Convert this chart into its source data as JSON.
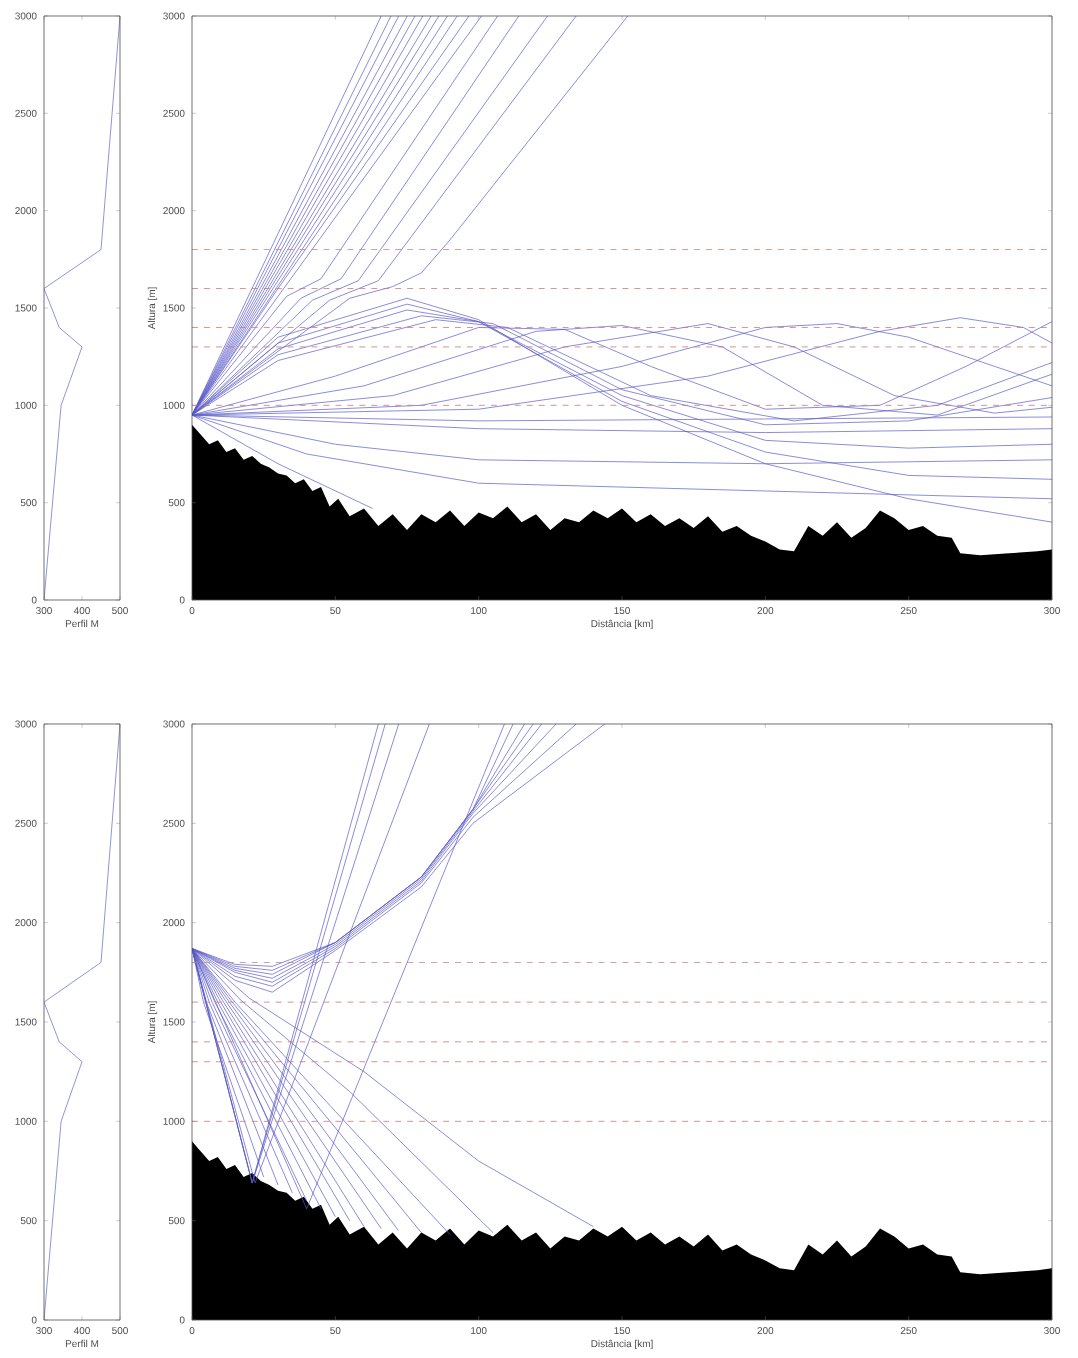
{
  "chart_data": [
    {
      "type": "line",
      "xlabel": "Perfil M",
      "xlim": [
        300,
        500
      ],
      "ylim": [
        0,
        3000
      ],
      "xticks": [
        300,
        400,
        500
      ],
      "yticks": [
        0,
        500,
        1000,
        1500,
        2000,
        2500,
        3000
      ],
      "series": [
        {
          "color": "#6464c8",
          "x": [
            300,
            345,
            400,
            340,
            300,
            450,
            500
          ],
          "values": [
            0,
            1000,
            1300,
            1400,
            1600,
            1800,
            3000
          ]
        }
      ]
    },
    {
      "type": "line",
      "xlabel": "Distância [km]",
      "ylabel": "Altura [m]",
      "xlim": [
        0,
        300
      ],
      "ylim": [
        0,
        3000
      ],
      "xticks": [
        0,
        50,
        100,
        150,
        200,
        250,
        300
      ],
      "yticks": [
        0,
        500,
        1000,
        1500,
        2000,
        2500,
        3000
      ],
      "ref_lines": [
        {
          "axis": "y",
          "value": 1000,
          "color": "#cc7777",
          "line_style": "dashed"
        },
        {
          "axis": "y",
          "value": 1300,
          "color": "#cc7777",
          "line_style": "dashed"
        },
        {
          "axis": "y",
          "value": 1400,
          "color": "#cc7777",
          "line_style": "dashed"
        },
        {
          "axis": "y",
          "value": 1600,
          "color": "#cc7777",
          "line_style": "dashed"
        },
        {
          "axis": "y",
          "value": 1800,
          "color": "#cc7777",
          "line_style": "dashed"
        }
      ],
      "series": [
        {
          "type": "area",
          "color": "#000000",
          "x": [
            0,
            3,
            6,
            9,
            12,
            15,
            18,
            21,
            24,
            27,
            30,
            33,
            36,
            39,
            42,
            45,
            48,
            51,
            55,
            60,
            65,
            70,
            75,
            80,
            85,
            90,
            95,
            100,
            105,
            110,
            115,
            120,
            125,
            130,
            135,
            140,
            145,
            150,
            155,
            160,
            165,
            170,
            175,
            180,
            185,
            190,
            195,
            200,
            205,
            210,
            215,
            220,
            225,
            230,
            235,
            240,
            245,
            250,
            255,
            260,
            265,
            268,
            275,
            285,
            295,
            300
          ],
          "values": [
            900,
            850,
            800,
            820,
            760,
            780,
            720,
            740,
            700,
            680,
            650,
            640,
            600,
            620,
            560,
            580,
            480,
            520,
            430,
            470,
            380,
            440,
            360,
            440,
            400,
            460,
            380,
            450,
            420,
            480,
            400,
            440,
            360,
            420,
            400,
            460,
            420,
            470,
            400,
            440,
            380,
            420,
            370,
            430,
            350,
            380,
            330,
            300,
            260,
            250,
            380,
            330,
            400,
            320,
            370,
            460,
            420,
            360,
            380,
            330,
            320,
            240,
            230,
            240,
            250,
            260
          ]
        },
        {
          "color": "#5a5ac8",
          "x": [
            0,
            66
          ],
          "values": [
            950,
            3000
          ]
        },
        {
          "color": "#5a5ac8",
          "x": [
            0,
            69.4
          ],
          "values": [
            950,
            3000
          ]
        },
        {
          "color": "#5a5ac8",
          "x": [
            0,
            72.1
          ],
          "values": [
            950,
            3000
          ]
        },
        {
          "color": "#5a5ac8",
          "x": [
            0,
            75.1
          ],
          "values": [
            950,
            3000
          ]
        },
        {
          "color": "#5a5ac8",
          "x": [
            0,
            77.8
          ],
          "values": [
            950,
            3000
          ]
        },
        {
          "color": "#5a5ac8",
          "x": [
            0,
            80.5
          ],
          "values": [
            950,
            3000
          ]
        },
        {
          "color": "#5a5ac8",
          "x": [
            0,
            83.4
          ],
          "values": [
            950,
            3000
          ]
        },
        {
          "color": "#5a5ac8",
          "x": [
            0,
            86.1
          ],
          "values": [
            950,
            3000
          ]
        },
        {
          "color": "#5a5ac8",
          "x": [
            0,
            89.1
          ],
          "values": [
            950,
            3000
          ]
        },
        {
          "color": "#5a5ac8",
          "x": [
            0,
            92.5
          ],
          "values": [
            950,
            3000
          ]
        },
        {
          "color": "#5a5ac8",
          "x": [
            0,
            30,
            96.6
          ],
          "values": [
            950,
            1600,
            3000
          ]
        },
        {
          "color": "#5a5ac8",
          "x": [
            0,
            31,
            101
          ],
          "values": [
            950,
            1580,
            3000
          ]
        },
        {
          "color": "#5a5ac8",
          "x": [
            0,
            33,
            45,
            106.6
          ],
          "values": [
            950,
            1560,
            1650,
            3000
          ]
        },
        {
          "color": "#5a5ac8",
          "x": [
            0,
            38,
            52,
            114
          ],
          "values": [
            950,
            1550,
            1650,
            3000
          ]
        },
        {
          "color": "#5a5ac8",
          "x": [
            0,
            42,
            58,
            124
          ],
          "values": [
            950,
            1540,
            1640,
            3000
          ]
        },
        {
          "color": "#5a5ac8",
          "x": [
            0,
            48,
            65,
            134
          ],
          "values": [
            950,
            1540,
            1640,
            3000
          ]
        },
        {
          "color": "#5a5ac8",
          "x": [
            0,
            55,
            70,
            80,
            90,
            152
          ],
          "values": [
            950,
            1550,
            1610,
            1680,
            1850,
            3000
          ]
        },
        {
          "color": "#5a5ac8",
          "x": [
            0,
            30,
            75,
            100,
            150,
            200,
            250,
            300
          ],
          "values": [
            950,
            1350,
            1550,
            1440,
            1000,
            700,
            520,
            400
          ]
        },
        {
          "color": "#5a5ac8",
          "x": [
            0,
            30,
            75,
            100,
            150,
            200,
            250,
            300
          ],
          "values": [
            950,
            1320,
            1520,
            1430,
            1020,
            760,
            640,
            620
          ]
        },
        {
          "color": "#5a5ac8",
          "x": [
            0,
            30,
            75,
            100,
            150,
            200,
            250,
            300
          ],
          "values": [
            950,
            1290,
            1490,
            1430,
            1050,
            820,
            780,
            800
          ]
        },
        {
          "color": "#5a5ac8",
          "x": [
            0,
            30,
            80,
            105,
            150,
            200,
            250,
            300
          ],
          "values": [
            950,
            1260,
            1460,
            1420,
            1080,
            900,
            920,
            1040
          ]
        },
        {
          "color": "#5a5ac8",
          "x": [
            0,
            30,
            85,
            110,
            160,
            210,
            260,
            300
          ],
          "values": [
            950,
            1230,
            1440,
            1400,
            1050,
            920,
            1000,
            1220
          ]
        },
        {
          "color": "#5a5ac8",
          "x": [
            0,
            50,
            100,
            130,
            160,
            200,
            240,
            270,
            300
          ],
          "values": [
            950,
            1150,
            1400,
            1390,
            1200,
            980,
            1000,
            1200,
            1430
          ]
        },
        {
          "color": "#5a5ac8",
          "x": [
            0,
            60,
            120,
            150,
            185,
            220,
            260,
            300
          ],
          "values": [
            950,
            1100,
            1380,
            1410,
            1300,
            1000,
            950,
            1160
          ]
        },
        {
          "color": "#5a5ac8",
          "x": [
            0,
            70,
            130,
            180,
            210,
            245,
            280,
            300
          ],
          "values": [
            950,
            1050,
            1300,
            1420,
            1300,
            1050,
            960,
            990
          ]
        },
        {
          "color": "#5a5ac8",
          "x": [
            0,
            80,
            150,
            200,
            225,
            250,
            300
          ],
          "values": [
            950,
            1000,
            1200,
            1400,
            1420,
            1350,
            1100
          ]
        },
        {
          "color": "#5a5ac8",
          "x": [
            0,
            100,
            180,
            240,
            268,
            290,
            300
          ],
          "values": [
            950,
            980,
            1150,
            1380,
            1450,
            1400,
            1320
          ]
        },
        {
          "color": "#5a5ac8",
          "x": [
            0,
            100,
            200,
            300
          ],
          "values": [
            950,
            920,
            930,
            940
          ]
        },
        {
          "color": "#5a5ac8",
          "x": [
            0,
            100,
            200,
            300
          ],
          "values": [
            950,
            880,
            860,
            880
          ]
        },
        {
          "color": "#5a5ac8",
          "x": [
            0,
            50,
            100,
            200,
            300
          ],
          "values": [
            950,
            800,
            720,
            700,
            720
          ]
        },
        {
          "color": "#5a5ac8",
          "x": [
            0,
            40,
            100,
            200,
            300
          ],
          "values": [
            950,
            750,
            600,
            560,
            520
          ]
        },
        {
          "color": "#5a5ac8",
          "x": [
            0,
            30,
            63
          ],
          "values": [
            950,
            700,
            470
          ]
        }
      ]
    },
    {
      "type": "line",
      "xlabel": "Perfil M",
      "xlim": [
        300,
        500
      ],
      "ylim": [
        0,
        3000
      ],
      "xticks": [
        300,
        400,
        500
      ],
      "yticks": [
        0,
        500,
        1000,
        1500,
        2000,
        2500,
        3000
      ],
      "series": [
        {
          "color": "#6464c8",
          "x": [
            300,
            345,
            400,
            340,
            300,
            450,
            500
          ],
          "values": [
            0,
            1000,
            1300,
            1400,
            1600,
            1800,
            3000
          ]
        }
      ]
    },
    {
      "type": "line",
      "xlabel": "Distância [km]",
      "ylabel": "Altura [m]",
      "xlim": [
        0,
        300
      ],
      "ylim": [
        0,
        3000
      ],
      "xticks": [
        0,
        50,
        100,
        150,
        200,
        250,
        300
      ],
      "yticks": [
        0,
        500,
        1000,
        1500,
        2000,
        2500,
        3000
      ],
      "ref_lines": [
        {
          "axis": "y",
          "value": 1000,
          "color": "#cc7777",
          "line_style": "dashed"
        },
        {
          "axis": "y",
          "value": 1300,
          "color": "#cc7777",
          "line_style": "dashed"
        },
        {
          "axis": "y",
          "value": 1400,
          "color": "#cc7777",
          "line_style": "dashed"
        },
        {
          "axis": "y",
          "value": 1600,
          "color": "#cc7777",
          "line_style": "dashed"
        },
        {
          "axis": "y",
          "value": 1800,
          "color": "#cc7777",
          "line_style": "dashed"
        }
      ],
      "series": [
        {
          "type": "area",
          "color": "#000000",
          "x": [
            0,
            3,
            6,
            9,
            12,
            15,
            18,
            21,
            24,
            27,
            30,
            33,
            36,
            39,
            42,
            45,
            48,
            51,
            55,
            60,
            65,
            70,
            75,
            80,
            85,
            90,
            95,
            100,
            105,
            110,
            115,
            120,
            125,
            130,
            135,
            140,
            145,
            150,
            155,
            160,
            165,
            170,
            175,
            180,
            185,
            190,
            195,
            200,
            205,
            210,
            215,
            220,
            225,
            230,
            235,
            240,
            245,
            250,
            255,
            260,
            265,
            268,
            275,
            285,
            295,
            300
          ],
          "values": [
            900,
            850,
            800,
            820,
            760,
            780,
            720,
            740,
            700,
            680,
            650,
            640,
            600,
            620,
            560,
            580,
            480,
            520,
            430,
            470,
            380,
            440,
            360,
            440,
            400,
            460,
            380,
            450,
            420,
            480,
            400,
            440,
            360,
            420,
            400,
            460,
            420,
            470,
            400,
            440,
            380,
            420,
            370,
            430,
            350,
            380,
            330,
            300,
            260,
            250,
            380,
            330,
            400,
            320,
            370,
            460,
            420,
            360,
            380,
            330,
            320,
            240,
            230,
            240,
            250,
            260
          ]
        },
        {
          "color": "#5a5ac8",
          "x": [
            0,
            21,
            65
          ],
          "values": [
            1870,
            690,
            3000
          ]
        },
        {
          "color": "#5a5ac8",
          "x": [
            0,
            21,
            67.4
          ],
          "values": [
            1870,
            690,
            3000
          ]
        },
        {
          "color": "#5a5ac8",
          "x": [
            0,
            21,
            72.1
          ],
          "values": [
            1870,
            690,
            3000
          ]
        },
        {
          "color": "#5a5ac8",
          "x": [
            0,
            22,
            82.8
          ],
          "values": [
            1870,
            690,
            3000
          ]
        },
        {
          "color": "#5a5ac8",
          "x": [
            0,
            40,
            109
          ],
          "values": [
            1870,
            560,
            3000
          ]
        },
        {
          "color": "#5a5ac8",
          "x": [
            0,
            15,
            28,
            50,
            80,
            98,
            112
          ],
          "values": [
            1870,
            1790,
            1780,
            1900,
            2230,
            2570,
            3000
          ]
        },
        {
          "color": "#5a5ac8",
          "x": [
            0,
            15,
            28,
            50,
            80,
            98,
            116
          ],
          "values": [
            1870,
            1780,
            1760,
            1900,
            2230,
            2570,
            3000
          ]
        },
        {
          "color": "#5a5ac8",
          "x": [
            0,
            15,
            28,
            50,
            80,
            98,
            119
          ],
          "values": [
            1870,
            1770,
            1740,
            1900,
            2230,
            2570,
            3000
          ]
        },
        {
          "color": "#5a5ac8",
          "x": [
            0,
            15,
            28,
            50,
            80,
            98,
            122
          ],
          "values": [
            1870,
            1760,
            1720,
            1890,
            2220,
            2560,
            3000
          ]
        },
        {
          "color": "#5a5ac8",
          "x": [
            0,
            15,
            28,
            50,
            80,
            98,
            127
          ],
          "values": [
            1870,
            1750,
            1700,
            1880,
            2210,
            2550,
            3000
          ]
        },
        {
          "color": "#5a5ac8",
          "x": [
            0,
            15,
            28,
            50,
            80,
            98,
            134
          ],
          "values": [
            1870,
            1730,
            1680,
            1870,
            2200,
            2530,
            3000
          ]
        },
        {
          "color": "#5a5ac8",
          "x": [
            0,
            15,
            28,
            50,
            80,
            98,
            144
          ],
          "values": [
            1870,
            1710,
            1650,
            1860,
            2180,
            2500,
            3000
          ]
        },
        {
          "color": "#5a5ac8",
          "x": [
            0,
            4,
            25
          ],
          "values": [
            1870,
            1600,
            720
          ]
        },
        {
          "color": "#5a5ac8",
          "x": [
            0,
            5,
            30
          ],
          "values": [
            1870,
            1600,
            680
          ]
        },
        {
          "color": "#5a5ac8",
          "x": [
            0,
            6,
            35
          ],
          "values": [
            1870,
            1600,
            640
          ]
        },
        {
          "color": "#5a5ac8",
          "x": [
            0,
            7,
            40
          ],
          "values": [
            1870,
            1600,
            600
          ]
        },
        {
          "color": "#5a5ac8",
          "x": [
            0,
            8,
            45
          ],
          "values": [
            1870,
            1600,
            560
          ]
        },
        {
          "color": "#5a5ac8",
          "x": [
            0,
            9,
            50
          ],
          "values": [
            1870,
            1600,
            520
          ]
        },
        {
          "color": "#5a5ac8",
          "x": [
            0,
            10,
            55
          ],
          "values": [
            1870,
            1600,
            500
          ]
        },
        {
          "color": "#5a5ac8",
          "x": [
            0,
            11,
            60
          ],
          "values": [
            1870,
            1600,
            470
          ]
        },
        {
          "color": "#5a5ac8",
          "x": [
            0,
            12,
            66
          ],
          "values": [
            1870,
            1600,
            460
          ]
        },
        {
          "color": "#5a5ac8",
          "x": [
            0,
            13,
            72
          ],
          "values": [
            1870,
            1600,
            450
          ]
        },
        {
          "color": "#5a5ac8",
          "x": [
            0,
            14,
            80
          ],
          "values": [
            1870,
            1600,
            440
          ]
        },
        {
          "color": "#5a5ac8",
          "x": [
            0,
            15,
            50,
            90
          ],
          "values": [
            1870,
            1600,
            1050,
            430
          ]
        },
        {
          "color": "#5a5ac8",
          "x": [
            0,
            17,
            55,
            105
          ],
          "values": [
            1870,
            1610,
            1150,
            440
          ]
        },
        {
          "color": "#5a5ac8",
          "x": [
            0,
            20,
            60,
            100,
            140
          ],
          "values": [
            1870,
            1620,
            1250,
            800,
            470
          ]
        }
      ]
    }
  ]
}
